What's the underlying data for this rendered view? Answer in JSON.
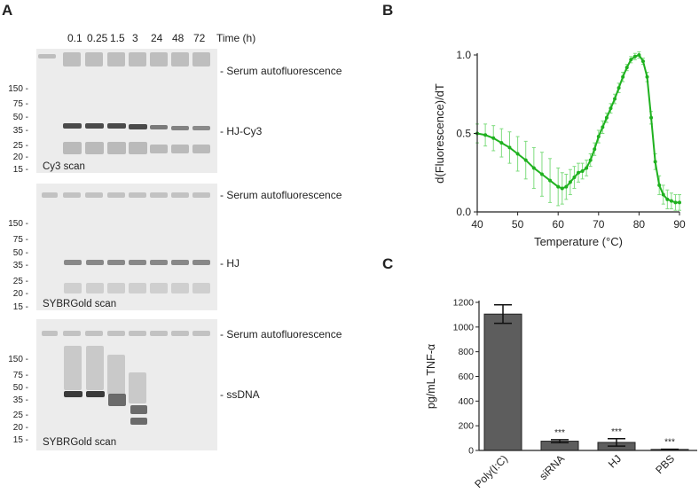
{
  "panels": {
    "A": {
      "letter": "A",
      "time_header": [
        "0.1",
        "0.25",
        "1.5",
        "3",
        "24",
        "48",
        "72",
        "Time (h)"
      ],
      "mw_markers": [
        "150 -",
        "75 -",
        "50 -",
        "35 -",
        "25 -",
        "20 -",
        "15 -"
      ],
      "gels": [
        {
          "scan_label": "Cy3 scan",
          "serum_label": "- Serum autofluorescence",
          "band_label": "- HJ-Cy3"
        },
        {
          "scan_label": "SYBRGold scan",
          "serum_label": "- Serum autofluorescence",
          "band_label": "- HJ"
        },
        {
          "scan_label": "SYBRGold scan",
          "serum_label": "- Serum autofluorescence",
          "band_label": "- ssDNA"
        }
      ]
    },
    "B": {
      "letter": "B"
    },
    "C": {
      "letter": "C"
    }
  },
  "chart_data": [
    {
      "type": "line",
      "panel": "B",
      "xlabel": "Temperature (°C)",
      "ylabel": "d(Fluorescence)/dT",
      "xlim": [
        40,
        90
      ],
      "ylim": [
        0.0,
        1.0
      ],
      "xticks": [
        "40",
        "50",
        "60",
        "70",
        "80",
        "90"
      ],
      "yticks": [
        "0.0",
        "0.5",
        "1.0"
      ],
      "color": "#1fb11f",
      "error_color": "#7fdc7f",
      "x": [
        40,
        42,
        44,
        46,
        48,
        50,
        52,
        54,
        56,
        58,
        60,
        61,
        62,
        63,
        64,
        65,
        66,
        67,
        68,
        69,
        70,
        71,
        72,
        73,
        74,
        75,
        76,
        77,
        78,
        79,
        80,
        81,
        82,
        83,
        84,
        85,
        86,
        87,
        88,
        89,
        90
      ],
      "y": [
        0.5,
        0.49,
        0.47,
        0.44,
        0.41,
        0.37,
        0.33,
        0.28,
        0.24,
        0.2,
        0.16,
        0.15,
        0.16,
        0.19,
        0.22,
        0.25,
        0.26,
        0.28,
        0.33,
        0.4,
        0.48,
        0.54,
        0.6,
        0.66,
        0.72,
        0.79,
        0.86,
        0.92,
        0.97,
        0.99,
        1.0,
        0.96,
        0.86,
        0.6,
        0.32,
        0.17,
        0.11,
        0.08,
        0.07,
        0.06,
        0.06
      ],
      "err": [
        0.06,
        0.07,
        0.08,
        0.09,
        0.1,
        0.11,
        0.12,
        0.13,
        0.14,
        0.14,
        0.12,
        0.1,
        0.08,
        0.08,
        0.07,
        0.06,
        0.05,
        0.05,
        0.04,
        0.04,
        0.04,
        0.04,
        0.03,
        0.03,
        0.03,
        0.03,
        0.03,
        0.02,
        0.02,
        0.02,
        0.02,
        0.02,
        0.03,
        0.04,
        0.05,
        0.06,
        0.06,
        0.06,
        0.05,
        0.05,
        0.05
      ]
    },
    {
      "type": "bar",
      "panel": "C",
      "categories": [
        "Poly(I:C)",
        "siRNA",
        "HJ",
        "PBS"
      ],
      "values": [
        1105,
        75,
        65,
        8
      ],
      "err": [
        75,
        12,
        30,
        2
      ],
      "significance": [
        "",
        "***",
        "***",
        "***"
      ],
      "ylabel": "pg/mL TNF-α",
      "ylim": [
        0,
        1200
      ],
      "yticks": [
        "0",
        "200",
        "400",
        "600",
        "800",
        "1000",
        "1200"
      ],
      "bar_color": "#5d5d5d"
    }
  ]
}
